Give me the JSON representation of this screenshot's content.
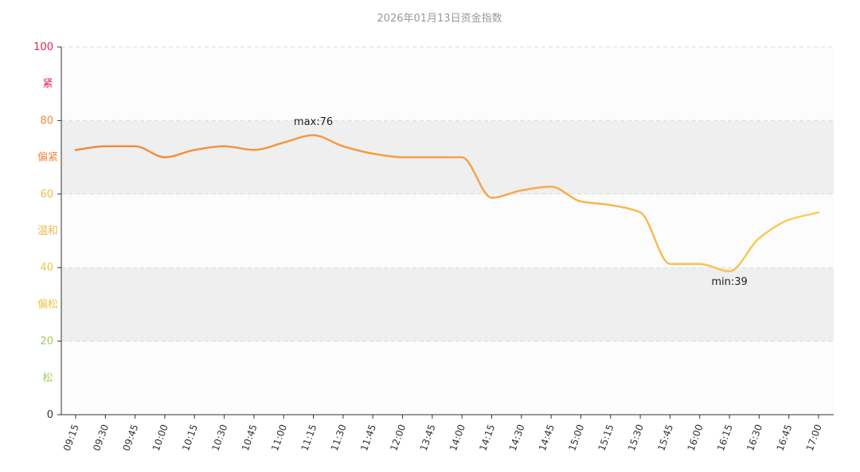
{
  "chart_data": {
    "type": "line",
    "title": "2026年01月13日资金指数",
    "xlabel": "",
    "ylabel": "",
    "ylim": [
      0,
      100
    ],
    "yticks": [
      {
        "value": 0,
        "label": "0",
        "color": "#333333"
      },
      {
        "value": 20,
        "label": "20",
        "color": "#a3cc5a"
      },
      {
        "value": 40,
        "label": "40",
        "color": "#e8c840"
      },
      {
        "value": 60,
        "label": "60",
        "color": "#f2b84a"
      },
      {
        "value": 80,
        "label": "80",
        "color": "#f08a3c"
      },
      {
        "value": 100,
        "label": "100",
        "color": "#e8224a"
      }
    ],
    "zones": [
      {
        "from": 0,
        "to": 20,
        "label": "松",
        "color": "#a3cc5a",
        "fill": "#fcfcfc"
      },
      {
        "from": 20,
        "to": 40,
        "label": "偏松",
        "color": "#e8c840",
        "fill": "#efefef"
      },
      {
        "from": 40,
        "to": 60,
        "label": "温和",
        "color": "#f2b84a",
        "fill": "#fcfcfc"
      },
      {
        "from": 60,
        "to": 80,
        "label": "偏紧",
        "color": "#f08a3c",
        "fill": "#efefef"
      },
      {
        "from": 80,
        "to": 100,
        "label": "紧",
        "color": "#e8224a",
        "fill": "#fcfcfc"
      }
    ],
    "categories": [
      "09:15",
      "09:30",
      "09:45",
      "10:00",
      "10:15",
      "10:30",
      "10:45",
      "11:00",
      "11:15",
      "11:30",
      "11:45",
      "12:00",
      "13:45",
      "14:00",
      "14:15",
      "14:30",
      "14:45",
      "15:00",
      "15:15",
      "15:30",
      "15:45",
      "16:00",
      "16:15",
      "16:30",
      "16:45",
      "17:00"
    ],
    "series": [
      {
        "values": [
          72,
          73,
          73,
          70,
          72,
          73,
          72,
          74,
          76,
          73,
          71,
          70,
          70,
          70,
          59,
          61,
          62,
          58,
          57,
          55,
          41,
          41,
          39,
          48,
          53,
          55
        ]
      }
    ],
    "gradient_stops": [
      {
        "offset": 0,
        "color": "#f08a3c"
      },
      {
        "offset": 0.55,
        "color": "#f6a44a"
      },
      {
        "offset": 1,
        "color": "#f7d15a"
      }
    ],
    "annotations": [
      {
        "label": "max:76",
        "category_index": 8,
        "position": "above"
      },
      {
        "label": "min:39",
        "category_index": 22,
        "position": "below"
      }
    ],
    "grid": true,
    "legend": "none"
  }
}
